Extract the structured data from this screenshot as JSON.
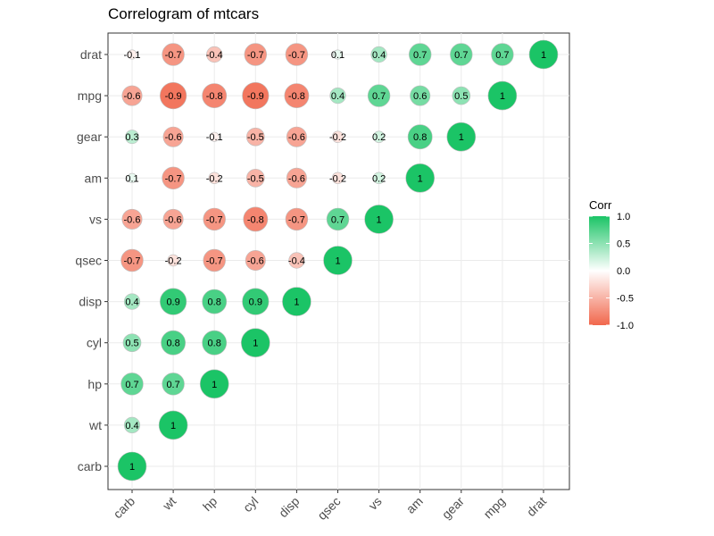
{
  "chart_data": {
    "type": "correlogram",
    "title": "Correlogram of mtcars",
    "variables_x": [
      "carb",
      "wt",
      "hp",
      "cyl",
      "disp",
      "qsec",
      "vs",
      "am",
      "gear",
      "mpg",
      "drat"
    ],
    "variables_y": [
      "carb",
      "wt",
      "hp",
      "cyl",
      "disp",
      "qsec",
      "vs",
      "am",
      "gear",
      "mpg",
      "drat"
    ],
    "cells": [
      {
        "x": "carb",
        "y": "carb",
        "value": 1
      },
      {
        "x": "carb",
        "y": "wt",
        "value": 0.4
      },
      {
        "x": "wt",
        "y": "wt",
        "value": 1
      },
      {
        "x": "carb",
        "y": "hp",
        "value": 0.7
      },
      {
        "x": "wt",
        "y": "hp",
        "value": 0.7
      },
      {
        "x": "hp",
        "y": "hp",
        "value": 1
      },
      {
        "x": "carb",
        "y": "cyl",
        "value": 0.5
      },
      {
        "x": "wt",
        "y": "cyl",
        "value": 0.8
      },
      {
        "x": "hp",
        "y": "cyl",
        "value": 0.8
      },
      {
        "x": "cyl",
        "y": "cyl",
        "value": 1
      },
      {
        "x": "carb",
        "y": "disp",
        "value": 0.4
      },
      {
        "x": "wt",
        "y": "disp",
        "value": 0.9
      },
      {
        "x": "hp",
        "y": "disp",
        "value": 0.8
      },
      {
        "x": "cyl",
        "y": "disp",
        "value": 0.9
      },
      {
        "x": "disp",
        "y": "disp",
        "value": 1
      },
      {
        "x": "carb",
        "y": "qsec",
        "value": -0.7
      },
      {
        "x": "wt",
        "y": "qsec",
        "value": -0.2
      },
      {
        "x": "hp",
        "y": "qsec",
        "value": -0.7
      },
      {
        "x": "cyl",
        "y": "qsec",
        "value": -0.6
      },
      {
        "x": "disp",
        "y": "qsec",
        "value": -0.4
      },
      {
        "x": "qsec",
        "y": "qsec",
        "value": 1
      },
      {
        "x": "carb",
        "y": "vs",
        "value": -0.6
      },
      {
        "x": "wt",
        "y": "vs",
        "value": -0.6
      },
      {
        "x": "hp",
        "y": "vs",
        "value": -0.7
      },
      {
        "x": "cyl",
        "y": "vs",
        "value": -0.8
      },
      {
        "x": "disp",
        "y": "vs",
        "value": -0.7
      },
      {
        "x": "qsec",
        "y": "vs",
        "value": 0.7
      },
      {
        "x": "vs",
        "y": "vs",
        "value": 1
      },
      {
        "x": "carb",
        "y": "am",
        "value": 0.1
      },
      {
        "x": "wt",
        "y": "am",
        "value": -0.7
      },
      {
        "x": "hp",
        "y": "am",
        "value": -0.2
      },
      {
        "x": "cyl",
        "y": "am",
        "value": -0.5
      },
      {
        "x": "disp",
        "y": "am",
        "value": -0.6
      },
      {
        "x": "qsec",
        "y": "am",
        "value": -0.2
      },
      {
        "x": "vs",
        "y": "am",
        "value": 0.2
      },
      {
        "x": "am",
        "y": "am",
        "value": 1
      },
      {
        "x": "carb",
        "y": "gear",
        "value": 0.3
      },
      {
        "x": "wt",
        "y": "gear",
        "value": -0.6
      },
      {
        "x": "hp",
        "y": "gear",
        "value": -0.1
      },
      {
        "x": "cyl",
        "y": "gear",
        "value": -0.5
      },
      {
        "x": "disp",
        "y": "gear",
        "value": -0.6
      },
      {
        "x": "qsec",
        "y": "gear",
        "value": -0.2
      },
      {
        "x": "vs",
        "y": "gear",
        "value": 0.2
      },
      {
        "x": "am",
        "y": "gear",
        "value": 0.8
      },
      {
        "x": "gear",
        "y": "gear",
        "value": 1
      },
      {
        "x": "carb",
        "y": "mpg",
        "value": -0.6
      },
      {
        "x": "wt",
        "y": "mpg",
        "value": -0.9
      },
      {
        "x": "hp",
        "y": "mpg",
        "value": -0.8
      },
      {
        "x": "cyl",
        "y": "mpg",
        "value": -0.9
      },
      {
        "x": "disp",
        "y": "mpg",
        "value": -0.8
      },
      {
        "x": "qsec",
        "y": "mpg",
        "value": 0.4
      },
      {
        "x": "vs",
        "y": "mpg",
        "value": 0.7
      },
      {
        "x": "am",
        "y": "mpg",
        "value": 0.6
      },
      {
        "x": "gear",
        "y": "mpg",
        "value": 0.5
      },
      {
        "x": "mpg",
        "y": "mpg",
        "value": 1
      },
      {
        "x": "carb",
        "y": "drat",
        "value": -0.1
      },
      {
        "x": "wt",
        "y": "drat",
        "value": -0.7
      },
      {
        "x": "hp",
        "y": "drat",
        "value": -0.4
      },
      {
        "x": "cyl",
        "y": "drat",
        "value": -0.7
      },
      {
        "x": "disp",
        "y": "drat",
        "value": -0.7
      },
      {
        "x": "qsec",
        "y": "drat",
        "value": 0.1
      },
      {
        "x": "vs",
        "y": "drat",
        "value": 0.4
      },
      {
        "x": "am",
        "y": "drat",
        "value": 0.7
      },
      {
        "x": "gear",
        "y": "drat",
        "value": 0.7
      },
      {
        "x": "mpg",
        "y": "drat",
        "value": 0.7
      },
      {
        "x": "drat",
        "y": "drat",
        "value": 1
      }
    ],
    "legend": {
      "title": "Corr",
      "ticks": [
        "1.0",
        "0.5",
        "0.0",
        "-0.5",
        "-1.0"
      ],
      "tick_values": [
        1.0,
        0.5,
        0.0,
        -0.5,
        -1.0
      ],
      "range": [
        -1,
        1
      ],
      "colors": {
        "low": "#F1674C",
        "mid": "#FFFFFF",
        "high": "#1BC466"
      },
      "placement": "right"
    },
    "grid": true
  }
}
